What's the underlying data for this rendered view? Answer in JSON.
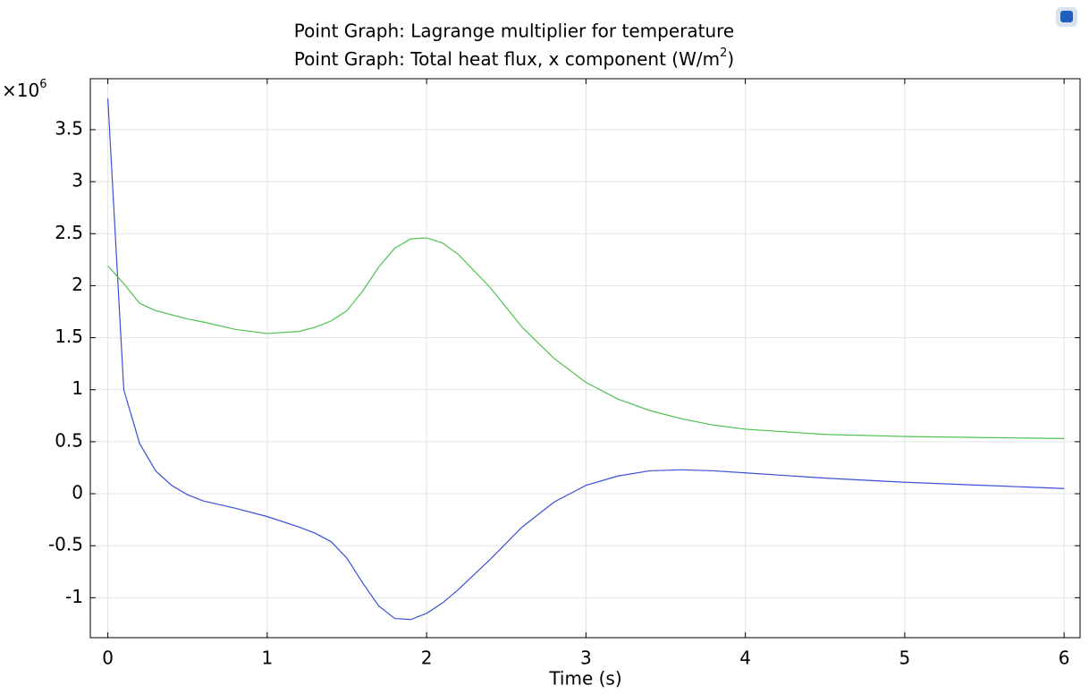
{
  "chart_data": {
    "type": "line",
    "title": "Point Graph: Lagrange multiplier for temperature",
    "subtitle": {
      "text": "Point Graph: Total heat flux, x component (W/m",
      "sup": "2",
      "tail": ")"
    },
    "y_multiplier": {
      "text": "×10",
      "sup": "6"
    },
    "x_label": "Time (s)",
    "x": [
      0,
      0.1,
      0.2,
      0.3,
      0.4,
      0.5,
      0.6,
      0.8,
      1,
      1.2,
      1.3,
      1.4,
      1.5,
      1.6,
      1.7,
      1.8,
      1.9,
      2,
      2.1,
      2.2,
      2.4,
      2.6,
      2.8,
      3,
      3.2,
      3.4,
      3.6,
      3.8,
      4,
      4.5,
      5,
      5.5,
      6
    ],
    "series": [
      {
        "color": "#3a4fd8",
        "values": [
          3.8,
          1.0,
          0.48,
          0.22,
          0.08,
          -0.01,
          -0.07,
          -0.14,
          -0.22,
          -0.32,
          -0.38,
          -0.46,
          -0.62,
          -0.86,
          -1.08,
          -1.2,
          -1.21,
          -1.15,
          -1.05,
          -0.92,
          -0.63,
          -0.32,
          -0.08,
          0.08,
          0.17,
          0.22,
          0.23,
          0.22,
          0.2,
          0.15,
          0.11,
          0.08,
          0.05
        ]
      },
      {
        "color": "#4ec24e",
        "values": [
          2.19,
          2.02,
          1.83,
          1.76,
          1.72,
          1.68,
          1.65,
          1.58,
          1.54,
          1.56,
          1.6,
          1.66,
          1.76,
          1.95,
          2.18,
          2.36,
          2.45,
          2.46,
          2.41,
          2.3,
          1.98,
          1.6,
          1.3,
          1.07,
          0.91,
          0.8,
          0.72,
          0.66,
          0.62,
          0.57,
          0.55,
          0.54,
          0.53
        ]
      }
    ],
    "xlim": [
      -0.11,
      6.1
    ],
    "xticks": [
      0,
      1,
      2,
      3,
      4,
      5,
      6
    ],
    "ylim": [
      -1.384,
      3.99
    ],
    "yticks": [
      -1,
      -0.5,
      0,
      0.5,
      1,
      1.5,
      2,
      2.5,
      3,
      3.5
    ],
    "grid": true
  }
}
